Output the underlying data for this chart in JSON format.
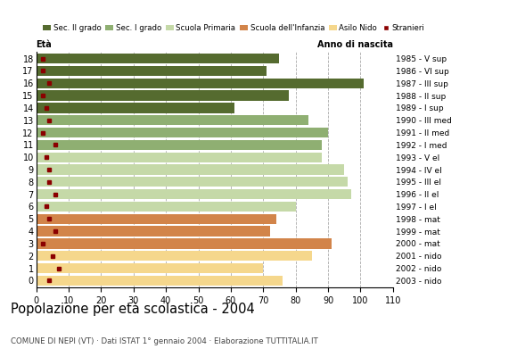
{
  "ages": [
    18,
    17,
    16,
    15,
    14,
    13,
    12,
    11,
    10,
    9,
    8,
    7,
    6,
    5,
    4,
    3,
    2,
    1,
    0
  ],
  "years": [
    "1985 - V sup",
    "1986 - VI sup",
    "1987 - III sup",
    "1988 - II sup",
    "1989 - I sup",
    "1990 - III med",
    "1991 - II med",
    "1992 - I med",
    "1993 - V el",
    "1994 - IV el",
    "1995 - III el",
    "1996 - II el",
    "1997 - I el",
    "1998 - mat",
    "1999 - mat",
    "2000 - mat",
    "2001 - nido",
    "2002 - nido",
    "2003 - nido"
  ],
  "values": [
    75,
    71,
    101,
    78,
    61,
    84,
    90,
    88,
    88,
    95,
    96,
    97,
    80,
    74,
    72,
    91,
    85,
    70,
    76
  ],
  "stranieri": [
    2,
    2,
    4,
    2,
    3,
    4,
    2,
    6,
    3,
    4,
    4,
    6,
    3,
    4,
    6,
    2,
    5,
    7,
    4
  ],
  "bar_colors": [
    "#556B2F",
    "#556B2F",
    "#556B2F",
    "#556B2F",
    "#556B2F",
    "#8FAF72",
    "#8FAF72",
    "#8FAF72",
    "#C5D9A8",
    "#C5D9A8",
    "#C5D9A8",
    "#C5D9A8",
    "#C5D9A8",
    "#D2844A",
    "#D2844A",
    "#D2844A",
    "#F5D78C",
    "#F5D78C",
    "#F5D78C"
  ],
  "legend_labels": [
    "Sec. II grado",
    "Sec. I grado",
    "Scuola Primaria",
    "Scuola dell'Infanzia",
    "Asilo Nido",
    "Stranieri"
  ],
  "legend_patch_colors": [
    "#556B2F",
    "#8FAF72",
    "#C5D9A8",
    "#D2844A",
    "#F5D78C",
    "#8B0000"
  ],
  "title": "Popolazione per età scolastica - 2004",
  "subtitle": "COMUNE DI NEPI (VT) · Dati ISTAT 1° gennaio 2004 · Elaborazione TUTTITALIA.IT",
  "label_eta": "Età",
  "label_anno": "Anno di nascita",
  "xlim": [
    0,
    110
  ],
  "xticks": [
    0,
    10,
    20,
    30,
    40,
    50,
    60,
    70,
    80,
    90,
    100,
    110
  ],
  "grid_color": "#AAAAAA",
  "bg_color": "#FFFFFF",
  "bar_height": 0.82,
  "stranieri_color": "#8B0000"
}
